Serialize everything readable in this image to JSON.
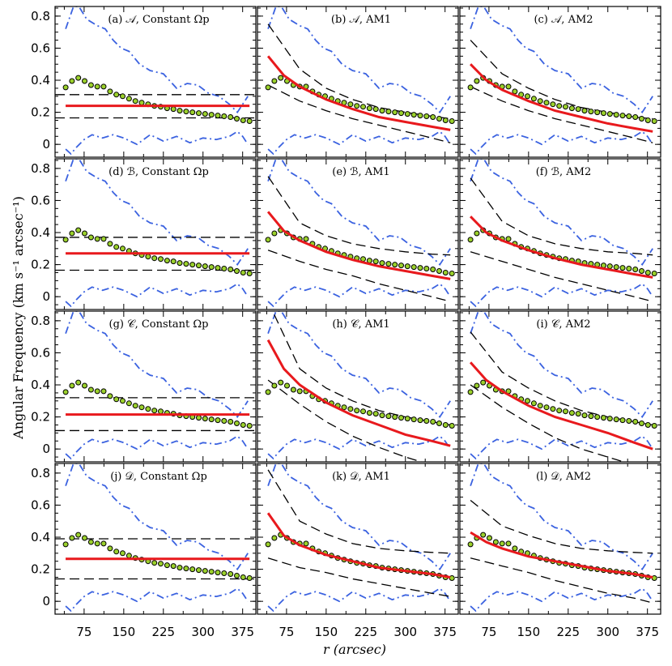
{
  "figure": {
    "ylabel": "Angular Frequency (km s⁻¹ arcsec⁻¹)",
    "xlabel": "r (arcsec)"
  },
  "axes": {
    "x_ticks": [
      "75",
      "150",
      "225",
      "300",
      "375"
    ],
    "y_ticks": [
      "0",
      "0.2",
      "0.4",
      "0.6",
      "0.8"
    ]
  },
  "colors": {
    "model": "#e8191d",
    "limits": "#3b62e0",
    "band": "#000000",
    "points_fill": "#9bd12c",
    "points_edge": "#000000"
  },
  "chart_data": [
    {
      "id": "a",
      "label": "(a) 𝒜, Constant Ωp",
      "type": "line",
      "xlim": [
        20,
        400
      ],
      "ylim": [
        -0.08,
        0.86
      ],
      "model": {
        "kind": "constant",
        "value": 0.24
      },
      "band": {
        "upper": 0.31,
        "lower": 0.165
      }
    },
    {
      "id": "b",
      "label": "(b) 𝒜, AM1",
      "type": "line",
      "xlim": [
        20,
        400
      ],
      "ylim": [
        -0.08,
        0.86
      ],
      "model": {
        "kind": "curve",
        "r": [
          40,
          70,
          100,
          150,
          200,
          250,
          300,
          350,
          385
        ],
        "y": [
          0.55,
          0.43,
          0.36,
          0.28,
          0.22,
          0.17,
          0.14,
          0.11,
          0.09
        ]
      },
      "band": {
        "upper_r": [
          40,
          100,
          150,
          200,
          250,
          300,
          350,
          385
        ],
        "upper": [
          0.75,
          0.47,
          0.35,
          0.28,
          0.23,
          0.2,
          0.175,
          0.16
        ],
        "lower_r": [
          40,
          100,
          150,
          200,
          250,
          300,
          350,
          385
        ],
        "lower": [
          0.37,
          0.27,
          0.21,
          0.16,
          0.12,
          0.08,
          0.04,
          0.01
        ]
      }
    },
    {
      "id": "c",
      "label": "(c) 𝒜, AM2",
      "type": "line",
      "xlim": [
        20,
        400
      ],
      "ylim": [
        -0.08,
        0.86
      ],
      "model": {
        "kind": "curve",
        "r": [
          40,
          70,
          100,
          150,
          200,
          250,
          300,
          350,
          385
        ],
        "y": [
          0.5,
          0.4,
          0.34,
          0.27,
          0.21,
          0.17,
          0.13,
          0.1,
          0.08
        ]
      },
      "band": {
        "upper_r": [
          40,
          100,
          150,
          200,
          250,
          300,
          350,
          385
        ],
        "upper": [
          0.65,
          0.44,
          0.35,
          0.28,
          0.23,
          0.2,
          0.17,
          0.16
        ],
        "lower_r": [
          40,
          100,
          150,
          200,
          250,
          300,
          350,
          385
        ],
        "lower": [
          0.36,
          0.27,
          0.21,
          0.16,
          0.12,
          0.08,
          0.04,
          0.01
        ]
      }
    },
    {
      "id": "d",
      "label": "(d) ℬ, Constant Ωp",
      "type": "line",
      "xlim": [
        20,
        400
      ],
      "ylim": [
        -0.08,
        0.86
      ],
      "model": {
        "kind": "constant",
        "value": 0.27
      },
      "band": {
        "upper": 0.37,
        "lower": 0.165
      }
    },
    {
      "id": "e",
      "label": "(e) ℬ, AM1",
      "type": "line",
      "xlim": [
        20,
        400
      ],
      "ylim": [
        -0.08,
        0.86
      ],
      "model": {
        "kind": "curve",
        "r": [
          40,
          70,
          100,
          150,
          200,
          250,
          300,
          350,
          385
        ],
        "y": [
          0.53,
          0.41,
          0.35,
          0.28,
          0.23,
          0.19,
          0.16,
          0.13,
          0.11
        ]
      },
      "band": {
        "upper_r": [
          40,
          100,
          150,
          200,
          250,
          300,
          350,
          385
        ],
        "upper": [
          0.75,
          0.46,
          0.38,
          0.33,
          0.3,
          0.28,
          0.265,
          0.26
        ],
        "lower_r": [
          40,
          100,
          150,
          200,
          250,
          300,
          350,
          385
        ],
        "lower": [
          0.29,
          0.22,
          0.17,
          0.13,
          0.08,
          0.04,
          0.0,
          -0.03
        ]
      }
    },
    {
      "id": "f",
      "label": "(f) ℬ, AM2",
      "type": "line",
      "xlim": [
        20,
        400
      ],
      "ylim": [
        -0.08,
        0.86
      ],
      "model": {
        "kind": "curve",
        "r": [
          40,
          70,
          100,
          150,
          200,
          250,
          300,
          350,
          385
        ],
        "y": [
          0.5,
          0.4,
          0.35,
          0.29,
          0.24,
          0.2,
          0.17,
          0.14,
          0.12
        ]
      },
      "band": {
        "upper_r": [
          40,
          100,
          150,
          200,
          250,
          300,
          350,
          385
        ],
        "upper": [
          0.74,
          0.47,
          0.38,
          0.33,
          0.3,
          0.28,
          0.27,
          0.26
        ],
        "lower_r": [
          40,
          100,
          150,
          200,
          250,
          300,
          350,
          385
        ],
        "lower": [
          0.28,
          0.22,
          0.17,
          0.12,
          0.08,
          0.04,
          0.0,
          -0.03
        ]
      }
    },
    {
      "id": "g",
      "label": "(g) 𝒞, Constant Ωp",
      "type": "line",
      "xlim": [
        20,
        400
      ],
      "ylim": [
        -0.08,
        0.86
      ],
      "model": {
        "kind": "constant",
        "value": 0.215
      },
      "band": {
        "upper": 0.32,
        "lower": 0.115
      }
    },
    {
      "id": "h",
      "label": "(h) 𝒞, AM1",
      "type": "line",
      "xlim": [
        20,
        400
      ],
      "ylim": [
        -0.08,
        0.86
      ],
      "model": {
        "kind": "curve",
        "r": [
          40,
          70,
          100,
          150,
          200,
          250,
          300,
          350,
          385
        ],
        "y": [
          0.68,
          0.5,
          0.4,
          0.29,
          0.21,
          0.15,
          0.09,
          0.05,
          0.02
        ]
      },
      "band": {
        "upper_r": [
          40,
          100,
          150,
          200,
          250,
          300,
          350,
          385
        ],
        "upper": [
          0.92,
          0.5,
          0.38,
          0.3,
          0.24,
          0.2,
          0.17,
          0.15
        ],
        "lower_r": [
          40,
          100,
          150,
          200,
          250,
          300,
          350,
          385
        ],
        "lower": [
          0.43,
          0.28,
          0.17,
          0.08,
          0.01,
          -0.05,
          -0.1,
          -0.13
        ]
      }
    },
    {
      "id": "i",
      "label": "(i) 𝒞, AM2",
      "type": "line",
      "xlim": [
        20,
        400
      ],
      "ylim": [
        -0.08,
        0.86
      ],
      "model": {
        "kind": "curve",
        "r": [
          40,
          70,
          100,
          150,
          200,
          250,
          300,
          350,
          385
        ],
        "y": [
          0.54,
          0.43,
          0.36,
          0.27,
          0.2,
          0.15,
          0.1,
          0.04,
          0.0
        ]
      },
      "band": {
        "upper_r": [
          40,
          100,
          150,
          200,
          250,
          300,
          350,
          385
        ],
        "upper": [
          0.73,
          0.48,
          0.38,
          0.3,
          0.24,
          0.2,
          0.17,
          0.15
        ],
        "lower_r": [
          40,
          100,
          150,
          200,
          250,
          300,
          350,
          385
        ],
        "lower": [
          0.4,
          0.26,
          0.16,
          0.07,
          0.0,
          -0.05,
          -0.1,
          -0.13
        ]
      }
    },
    {
      "id": "j",
      "label": "(j) 𝒟, Constant Ωp",
      "type": "line",
      "xlim": [
        20,
        400
      ],
      "ylim": [
        -0.08,
        0.86
      ],
      "model": {
        "kind": "constant",
        "value": 0.265
      },
      "band": {
        "upper": 0.39,
        "lower": 0.14
      }
    },
    {
      "id": "k",
      "label": "(k) 𝒟, AM1",
      "type": "line",
      "xlim": [
        20,
        400
      ],
      "ylim": [
        -0.08,
        0.86
      ],
      "model": {
        "kind": "curve",
        "r": [
          40,
          70,
          100,
          150,
          200,
          250,
          300,
          350,
          385
        ],
        "y": [
          0.55,
          0.41,
          0.35,
          0.29,
          0.25,
          0.21,
          0.19,
          0.17,
          0.15
        ]
      },
      "band": {
        "upper_r": [
          40,
          100,
          150,
          200,
          250,
          300,
          350,
          385
        ],
        "upper": [
          0.82,
          0.5,
          0.42,
          0.36,
          0.33,
          0.315,
          0.305,
          0.3
        ],
        "lower_r": [
          40,
          100,
          150,
          200,
          250,
          300,
          350,
          385
        ],
        "lower": [
          0.27,
          0.21,
          0.18,
          0.14,
          0.11,
          0.08,
          0.05,
          0.03
        ]
      }
    },
    {
      "id": "l",
      "label": "(l) 𝒟, AM2",
      "type": "line",
      "xlim": [
        20,
        400
      ],
      "ylim": [
        -0.08,
        0.86
      ],
      "model": {
        "kind": "curve",
        "r": [
          40,
          70,
          100,
          150,
          200,
          250,
          300,
          350,
          385
        ],
        "y": [
          0.43,
          0.37,
          0.33,
          0.28,
          0.25,
          0.22,
          0.19,
          0.17,
          0.15
        ]
      },
      "band": {
        "upper_r": [
          40,
          100,
          150,
          200,
          250,
          300,
          350,
          385
        ],
        "upper": [
          0.63,
          0.47,
          0.41,
          0.36,
          0.33,
          0.315,
          0.305,
          0.3
        ],
        "lower_r": [
          40,
          100,
          150,
          200,
          250,
          300,
          350,
          385
        ],
        "lower": [
          0.27,
          0.22,
          0.18,
          0.13,
          0.09,
          0.05,
          0.02,
          -0.01
        ]
      }
    }
  ],
  "common_series": {
    "points": {
      "name": "observed",
      "r": [
        40,
        52,
        64,
        76,
        88,
        100,
        112,
        124,
        136,
        148,
        160,
        172,
        184,
        196,
        208,
        220,
        232,
        244,
        256,
        268,
        280,
        292,
        304,
        316,
        328,
        340,
        352,
        364,
        376,
        388
      ],
      "y": [
        0.355,
        0.395,
        0.415,
        0.395,
        0.37,
        0.36,
        0.36,
        0.33,
        0.31,
        0.3,
        0.285,
        0.27,
        0.26,
        0.25,
        0.24,
        0.235,
        0.225,
        0.22,
        0.21,
        0.205,
        0.2,
        0.195,
        0.19,
        0.185,
        0.18,
        0.175,
        0.17,
        0.16,
        0.15,
        0.145
      ]
    },
    "limit_upper": {
      "name": "upper limit",
      "r": [
        40,
        55,
        65,
        80,
        100,
        115,
        130,
        145,
        160,
        180,
        200,
        225,
        250,
        270,
        290,
        310,
        330,
        350,
        365,
        375,
        385
      ],
      "y": [
        0.72,
        0.86,
        0.86,
        0.78,
        0.74,
        0.72,
        0.65,
        0.6,
        0.58,
        0.5,
        0.46,
        0.44,
        0.35,
        0.38,
        0.37,
        0.32,
        0.3,
        0.25,
        0.2,
        0.25,
        0.3
      ]
    },
    "limit_lower": {
      "name": "lower limit",
      "r": [
        40,
        50,
        60,
        75,
        90,
        110,
        130,
        150,
        175,
        200,
        225,
        250,
        275,
        300,
        325,
        350,
        365,
        375,
        385
      ],
      "y": [
        -0.03,
        -0.06,
        -0.02,
        0.03,
        0.06,
        0.04,
        0.06,
        0.04,
        0.0,
        0.06,
        0.02,
        0.05,
        0.01,
        0.04,
        0.03,
        0.05,
        0.08,
        0.05,
        0.0
      ]
    }
  }
}
